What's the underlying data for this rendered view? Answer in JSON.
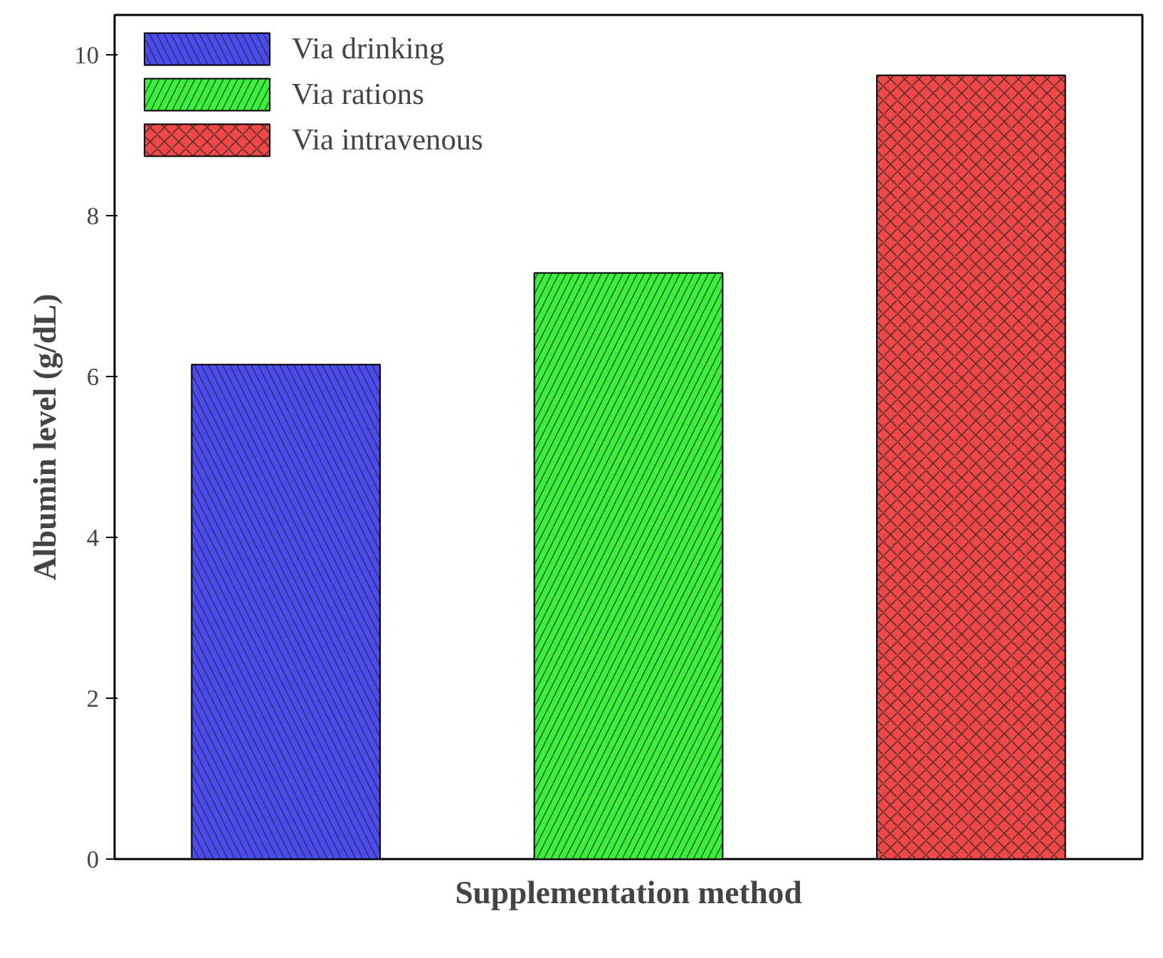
{
  "chart_data": {
    "type": "bar",
    "xlabel": "Supplementation method",
    "ylabel": "Albumin level (g/dL)",
    "categories": [
      null,
      null,
      null
    ],
    "series": [
      {
        "name": "Via drinking",
        "color": "#4b4bf0",
        "values": [
          6.15,
          null,
          null
        ]
      },
      {
        "name": "Via rations",
        "color": "#3ef03e",
        "values": [
          null,
          7.29,
          null
        ]
      },
      {
        "name": "Via intravenous",
        "color": "#f04848",
        "values": [
          null,
          null,
          9.75
        ]
      }
    ],
    "ylim": [
      0,
      10.5
    ],
    "yticks": [
      0,
      2,
      4,
      6,
      8,
      10
    ],
    "stacked": true,
    "legend": "top left",
    "grid": false
  }
}
